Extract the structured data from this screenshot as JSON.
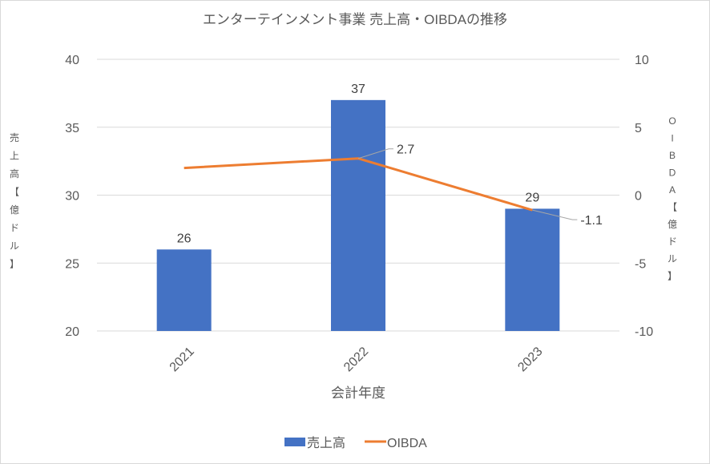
{
  "chart_data": {
    "type": "bar",
    "title": "エンターテインメント事業 売上高・OIBDAの推移",
    "xlabel": "会計年度",
    "ylabel": "売上高 【億ドル】",
    "ylabel_chars": [
      "売",
      "上",
      "高",
      "【",
      "億",
      "ド",
      "ル",
      "】"
    ],
    "y2label": "OIBDA 【億ドル】",
    "y2label_chars": [
      "O",
      "I",
      "B",
      "D",
      "A",
      "【",
      "億",
      "ド",
      "ル",
      "】"
    ],
    "categories": [
      "2021",
      "2022",
      "2023"
    ],
    "ylim": [
      20,
      40
    ],
    "yticks": [
      20,
      25,
      30,
      35,
      40
    ],
    "y2lim": [
      -10,
      10
    ],
    "y2ticks": [
      -10,
      -5,
      0,
      5,
      10
    ],
    "grid": true,
    "legend_position": "bottom",
    "series": [
      {
        "name": "売上高",
        "type": "bar",
        "axis": "left",
        "color": "#4472c4",
        "values": [
          26,
          37,
          29
        ],
        "labels": [
          "26",
          "37",
          "29"
        ]
      },
      {
        "name": "OIBDA",
        "type": "line",
        "axis": "right",
        "color": "#ed7d31",
        "values": [
          2.0,
          2.7,
          -1.1
        ],
        "labels": [
          null,
          "2.7",
          "-1.1"
        ]
      }
    ]
  }
}
